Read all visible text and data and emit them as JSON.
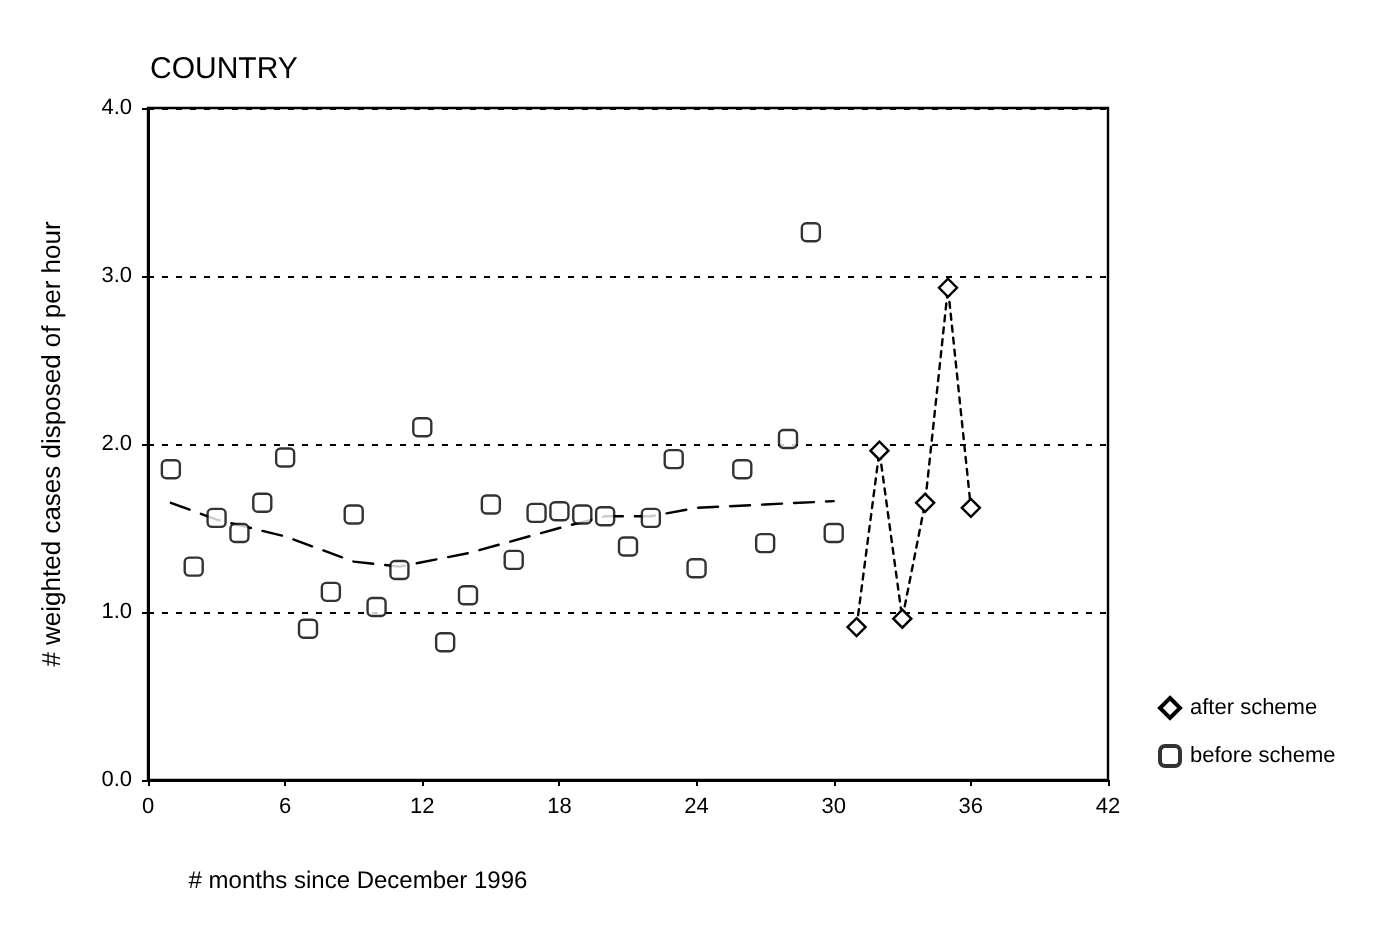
{
  "chart_data": {
    "type": "scatter",
    "title": "COUNTRY",
    "xlabel": "# months since December 1996",
    "ylabel": "# weighted cases disposed of per hour",
    "xlim": [
      0,
      42
    ],
    "xticks": [
      0,
      6,
      12,
      18,
      24,
      30,
      36,
      42
    ],
    "ylim": [
      0,
      4
    ],
    "yticks": [
      {
        "value": 0,
        "label": "0.0"
      },
      {
        "value": 1,
        "label": "1.0"
      },
      {
        "value": 2,
        "label": "2.0"
      },
      {
        "value": 3,
        "label": "3.0"
      },
      {
        "value": 4,
        "label": "4.0"
      }
    ],
    "grid": "y",
    "legend": "bottom right",
    "series": [
      {
        "name": "after scheme",
        "type": "line",
        "color": "#000000",
        "marker": "diamond",
        "line_style": "dotted",
        "x": [
          31,
          32,
          33,
          34,
          35,
          36
        ],
        "values": [
          0.91,
          1.96,
          0.96,
          1.65,
          2.93,
          1.62
        ]
      },
      {
        "name": "before scheme",
        "type": "scatter",
        "color": "#000000",
        "marker": "square",
        "x": [
          1,
          2,
          3,
          4,
          5,
          6,
          7,
          8,
          9,
          10,
          11,
          12,
          13,
          14,
          15,
          16,
          17,
          18,
          19,
          20,
          21,
          22,
          23,
          24,
          26,
          27,
          28,
          29,
          30
        ],
        "values": [
          1.85,
          1.27,
          1.56,
          1.47,
          1.65,
          1.92,
          0.9,
          1.12,
          1.58,
          1.03,
          1.25,
          2.1,
          0.82,
          1.1,
          1.64,
          1.31,
          1.59,
          1.6,
          1.58,
          1.57,
          1.39,
          1.56,
          1.91,
          1.26,
          1.85,
          1.41,
          2.03,
          3.26,
          1.47
        ]
      },
      {
        "type": "line",
        "color": "#000000",
        "marker": "none",
        "line_style": "dashed",
        "x": [
          1,
          3,
          6,
          9,
          11,
          14,
          18,
          20,
          22,
          24,
          27,
          30
        ],
        "values": [
          1.65,
          1.55,
          1.45,
          1.3,
          1.27,
          1.35,
          1.5,
          1.57,
          1.57,
          1.62,
          1.64,
          1.66
        ]
      }
    ]
  }
}
